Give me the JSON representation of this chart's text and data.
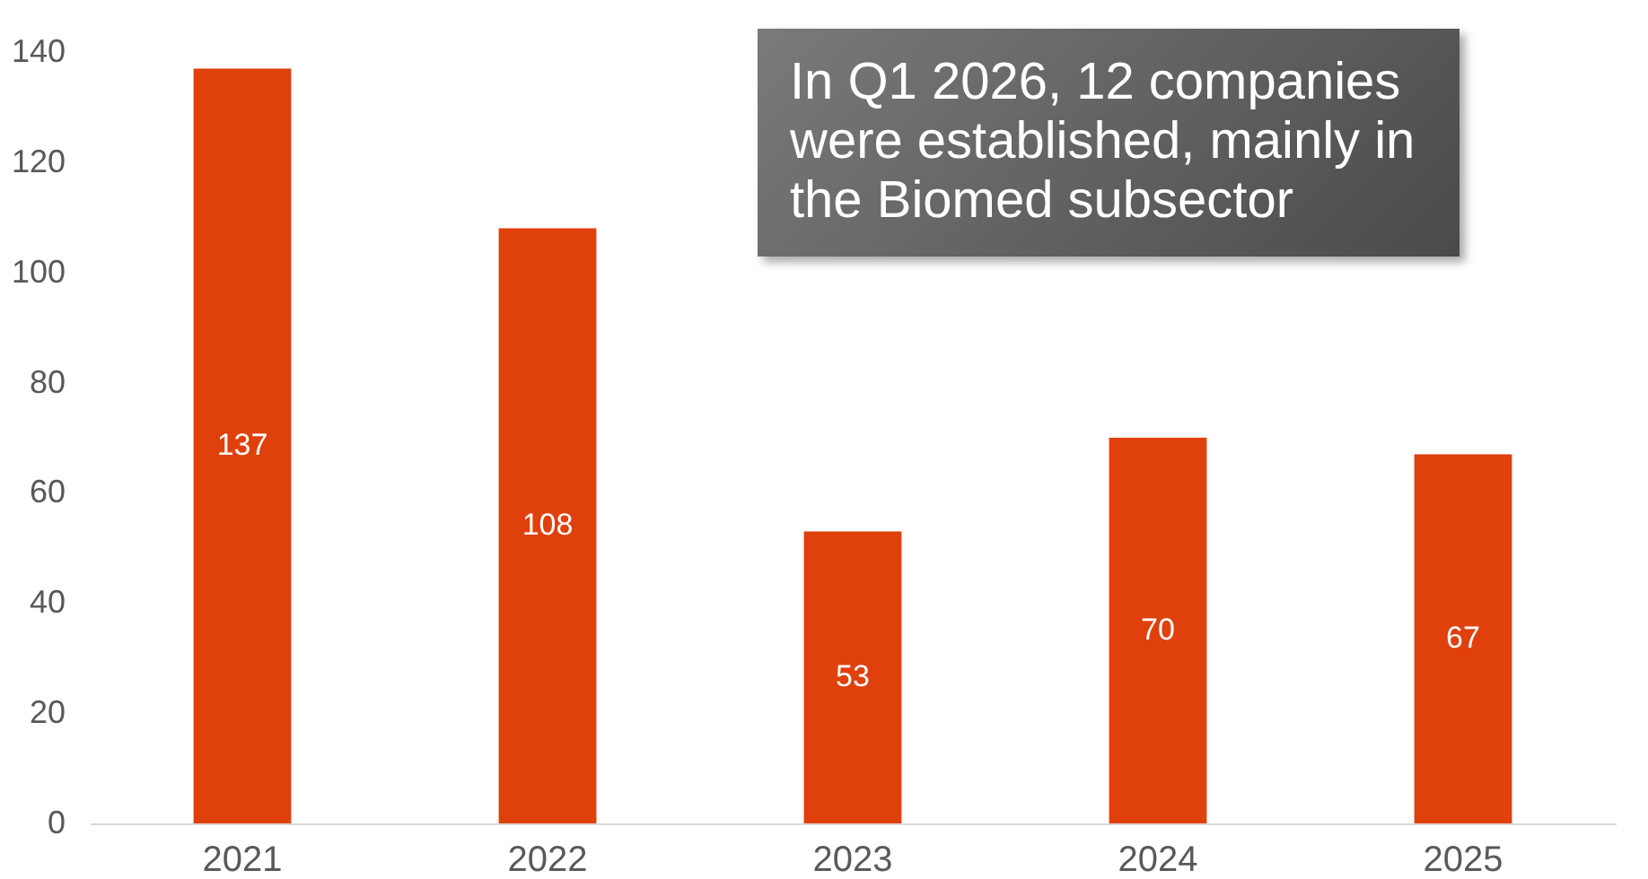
{
  "chart_data": {
    "type": "bar",
    "categories": [
      "2021",
      "2022",
      "2023",
      "2024",
      "2025"
    ],
    "values": [
      137,
      108,
      53,
      70,
      67
    ],
    "color": "#e0400c",
    "ylim": [
      0,
      140
    ],
    "yticks": [
      0,
      20,
      40,
      60,
      80,
      100,
      120,
      140
    ],
    "grid": false,
    "data_labels": true,
    "annotations": [
      "In Q1 2026, 12 companies were established, mainly in the Biomed subsector"
    ]
  }
}
